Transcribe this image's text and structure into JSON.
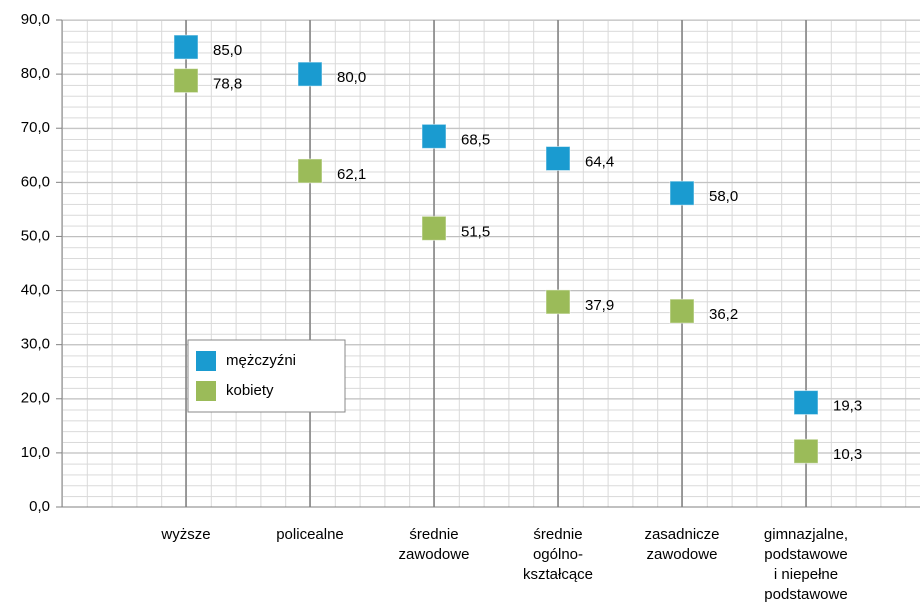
{
  "chart_data": {
    "type": "scatter",
    "categories": [
      "wyższe",
      "policealne",
      "średnie\nzawodowe",
      "średnie\nogólno-\nkształcące",
      "zasadnicze\nzawodowe",
      "gimnazjalne,\npodstawowe\ni niepełne\npodstawowe"
    ],
    "series": [
      {
        "name": "mężczyźni",
        "color": "#1a9bd0",
        "values": [
          85.0,
          80.0,
          68.5,
          64.4,
          58.0,
          19.3
        ],
        "value_labels": [
          "85,0",
          "80,0",
          "68,5",
          "64,4",
          "58,0",
          "19,3"
        ]
      },
      {
        "name": "kobiety",
        "color": "#9bbb59",
        "values": [
          78.8,
          62.1,
          51.5,
          37.9,
          36.2,
          10.3
        ],
        "value_labels": [
          "78,8",
          "62,1",
          "51,5",
          "37,9",
          "36,2",
          "10,3"
        ]
      }
    ],
    "ylim": [
      0,
      90
    ],
    "yticks": [
      {
        "value": 0,
        "label": "0,0"
      },
      {
        "value": 10,
        "label": "10,0"
      },
      {
        "value": 20,
        "label": "20,0"
      },
      {
        "value": 30,
        "label": "30,0"
      },
      {
        "value": 40,
        "label": "40,0"
      },
      {
        "value": 50,
        "label": "50,0"
      },
      {
        "value": 60,
        "label": "60,0"
      },
      {
        "value": 70,
        "label": "70,0"
      },
      {
        "value": 80,
        "label": "80,0"
      },
      {
        "value": 90,
        "label": "90,0"
      }
    ],
    "grid": true,
    "legend": "lower left"
  }
}
